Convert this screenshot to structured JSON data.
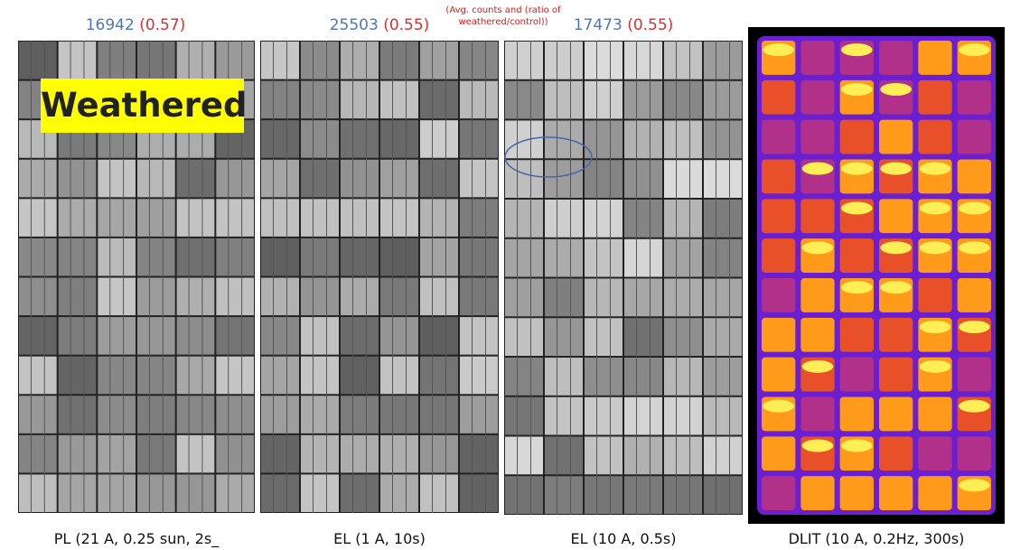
{
  "annotation": "(Avg. counts and (ratio of weathered/control))",
  "label": "Weathered",
  "panels": [
    {
      "count": "16942",
      "ratio": "(0.57)",
      "caption": "PL (21 A, 0.25 sun, 2s_"
    },
    {
      "count": "25503",
      "ratio": "(0.55)",
      "caption": "EL (1 A, 10s)"
    },
    {
      "count": "17473",
      "ratio": "(0.55)",
      "caption": "EL (10 A, 0.5s)"
    },
    {
      "caption": "DLIT (10 A, 0.2Hz, 300s)"
    }
  ]
}
